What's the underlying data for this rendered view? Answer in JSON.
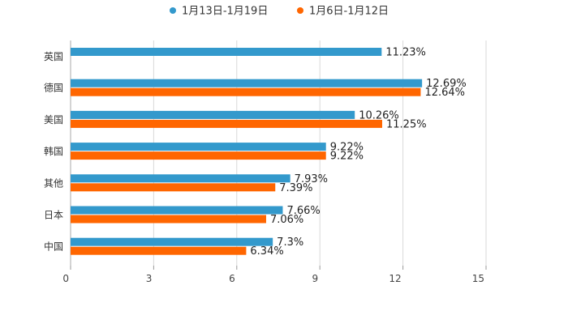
{
  "chart_data": {
    "type": "bar",
    "orientation": "horizontal",
    "categories": [
      "英国",
      "德国",
      "美国",
      "韩国",
      "其他",
      "日本",
      "中国"
    ],
    "series": [
      {
        "name": "1月13日-1月19日",
        "color": "#3399cc",
        "values": [
          11.23,
          12.69,
          10.26,
          9.22,
          7.93,
          7.66,
          7.3
        ],
        "labels": [
          "11.23%",
          "12.69%",
          "10.26%",
          "9.22%",
          "7.93%",
          "7.66%",
          "7.3%"
        ]
      },
      {
        "name": "1月6日-1月12日",
        "color": "#ff6600",
        "values": [
          null,
          12.64,
          11.25,
          9.22,
          7.39,
          7.06,
          6.34
        ],
        "labels": [
          null,
          "12.64%",
          "11.25%",
          "9.22%",
          "7.39%",
          "7.06%",
          "6.34%"
        ]
      }
    ],
    "x_ticks": [
      "0",
      "3",
      "6",
      "9",
      "12",
      "15"
    ],
    "xlim": [
      0,
      15
    ],
    "grid": true,
    "legend_position": "top-center",
    "title": "",
    "xlabel": "",
    "ylabel": ""
  }
}
